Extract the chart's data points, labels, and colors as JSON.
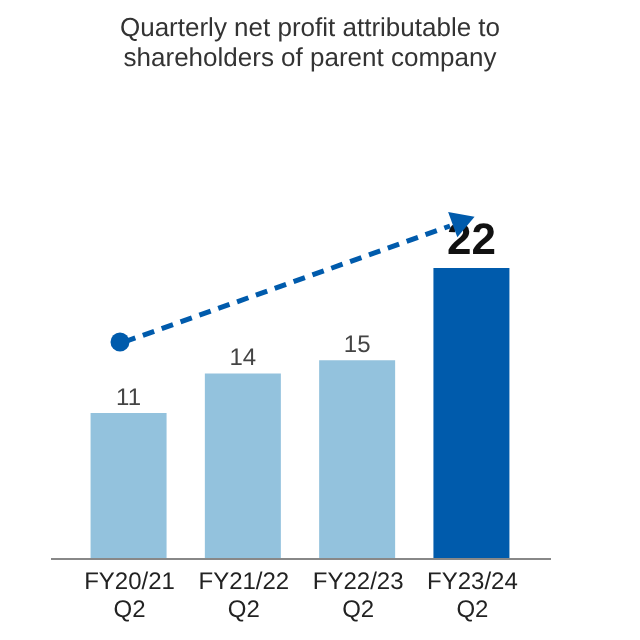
{
  "chart_data": {
    "type": "bar",
    "title": "Quarterly net profit attributable to shareholders of parent company",
    "categories": [
      "FY20/21 Q2",
      "FY21/22 Q2",
      "FY22/23 Q2",
      "FY23/24 Q2"
    ],
    "values": [
      11,
      14,
      15,
      22
    ],
    "colors": [
      "#93c2dd",
      "#93c2dd",
      "#93c2dd",
      "#005bac"
    ],
    "data_labels": true,
    "tick_labels": "x",
    "grid": false
  }
}
